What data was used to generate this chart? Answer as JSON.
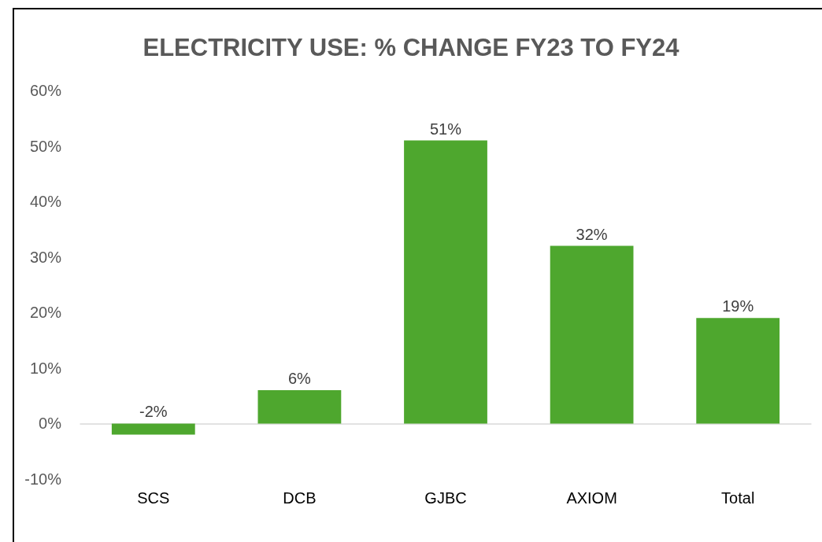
{
  "chart_data": {
    "type": "bar",
    "title": "ELECTRICITY USE: % CHANGE FY23 TO FY24",
    "categories": [
      "SCS",
      "DCB",
      "GJBC",
      "AXIOM",
      "Total"
    ],
    "values": [
      -2,
      6,
      51,
      32,
      19
    ],
    "value_labels": [
      "-2%",
      "6%",
      "51%",
      "32%",
      "19%"
    ],
    "color": "#4ea72e",
    "ylim": [
      -10,
      60
    ],
    "yticks": [
      {
        "value": -10,
        "label": "-10%"
      },
      {
        "value": 0,
        "label": "0%"
      },
      {
        "value": 10,
        "label": "10%"
      },
      {
        "value": 20,
        "label": "20%"
      },
      {
        "value": 30,
        "label": "30%"
      },
      {
        "value": 40,
        "label": "40%"
      },
      {
        "value": 50,
        "label": "50%"
      },
      {
        "value": 60,
        "label": "60%"
      }
    ],
    "ylabel": null
  }
}
